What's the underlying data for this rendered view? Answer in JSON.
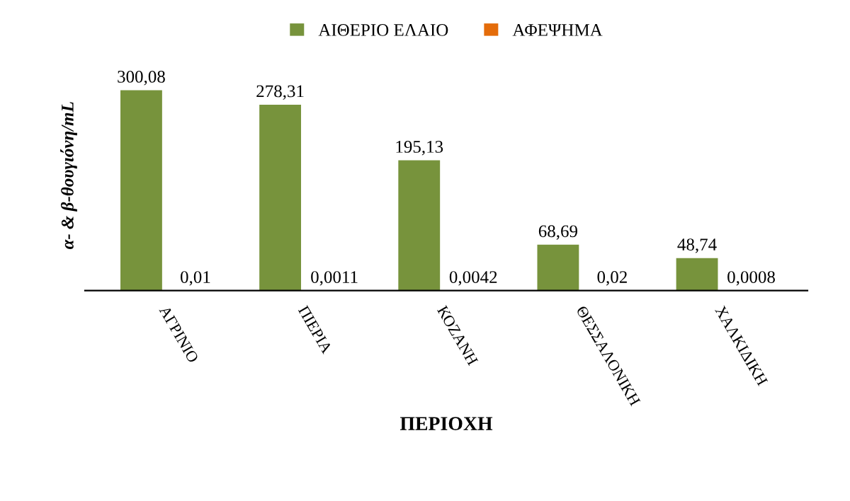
{
  "chart_data": {
    "type": "bar",
    "xlabel": "ΠΕΡΙΟΧΗ",
    "ylabel": "α- & β-θουγιόνη/mL",
    "categories": [
      "ΑΓΡΙΝΙΟ",
      "ΠΙΕΡΙΑ",
      "ΚΟΖΑΝΗ",
      "ΘΕΣΣΑΛΟΝΙΚΗ",
      "ΧΑΛΚΙΔΙΚΗ"
    ],
    "series": [
      {
        "name": "ΑΙΘΕΡΙΟ ΕΛΑΙΟ",
        "color": "#77933c",
        "values": [
          300.08,
          278.31,
          195.13,
          68.69,
          48.74
        ],
        "value_labels": [
          "300,08",
          "278,31",
          "195,13",
          "68,69",
          "48,74"
        ]
      },
      {
        "name": "ΑΦΕΨΗΜΑ",
        "color": "#e46c0a",
        "values": [
          0.01,
          0.0011,
          0.0042,
          0.02,
          0.0008
        ],
        "value_labels": [
          "0,01",
          "0,0011",
          "0,0042",
          "0,02",
          "0,0008"
        ]
      }
    ],
    "tick_labels": "x",
    "legend": "top",
    "grid": false
  }
}
